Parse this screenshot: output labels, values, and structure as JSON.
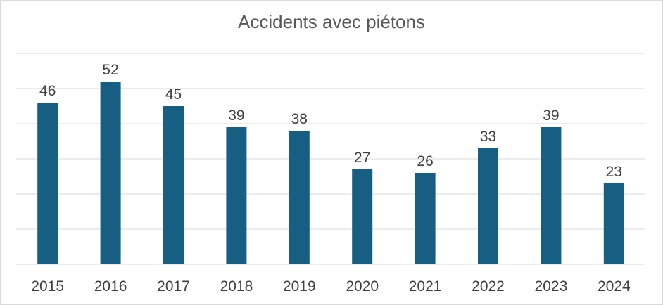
{
  "chart_data": {
    "type": "bar",
    "title": "Accidents avec piétons",
    "categories": [
      "2015",
      "2016",
      "2017",
      "2018",
      "2019",
      "2020",
      "2021",
      "2022",
      "2023",
      "2024"
    ],
    "values": [
      46,
      52,
      45,
      39,
      38,
      27,
      26,
      33,
      39,
      23
    ],
    "xlabel": "",
    "ylabel": "",
    "ylim": [
      0,
      60
    ],
    "gridline_step": 10,
    "grid": true,
    "bar_color": "#175f82",
    "data_labels": true
  }
}
